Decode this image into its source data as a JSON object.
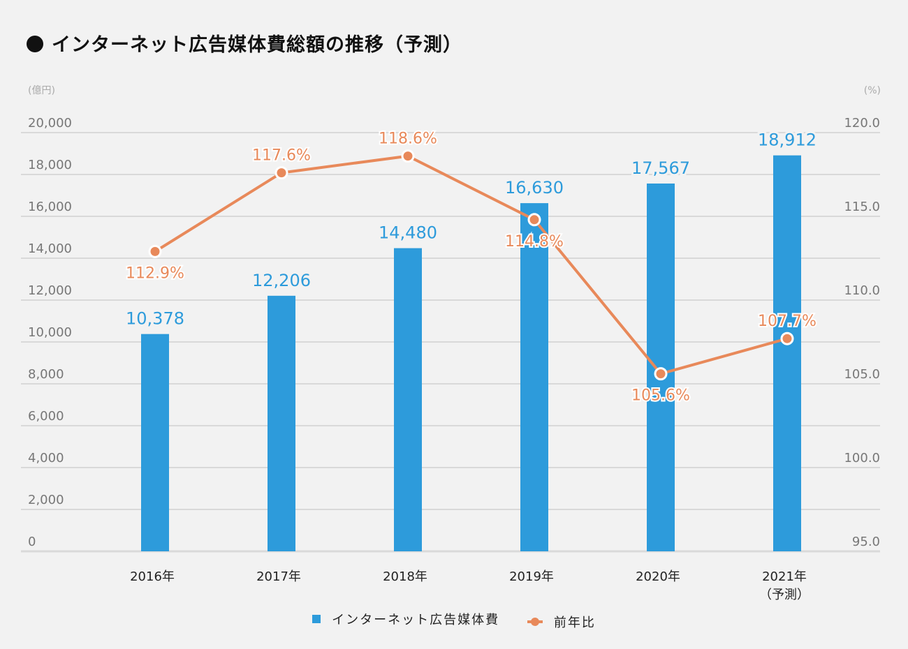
{
  "title": "インターネット広告媒体費総額の推移（予測）",
  "chart_data": {
    "type": "bar+line",
    "title": "インターネット広告媒体費総額の推移（予測）",
    "categories": [
      "2016年",
      "2017年",
      "2018年",
      "2019年",
      "2020年",
      "2021年"
    ],
    "category_sublabels": [
      "",
      "",
      "",
      "",
      "",
      "（予測）"
    ],
    "y_left": {
      "unit_label": "(億円)",
      "ticks": [
        "0",
        "2,000",
        "4,000",
        "6,000",
        "8,000",
        "10,000",
        "12,000",
        "14,000",
        "16,000",
        "18,000",
        "20,000"
      ],
      "range": [
        0,
        20000
      ]
    },
    "y_right": {
      "unit_label": "(%)",
      "ticks": [
        "95.0",
        "100.0",
        "105.0",
        "110.0",
        "115.0",
        "120.0"
      ],
      "range": [
        95,
        120
      ]
    },
    "grid": true,
    "series": [
      {
        "name": "インターネット広告媒体費",
        "type": "bar",
        "axis": "left",
        "color": "#2d9bdb",
        "values": [
          10378,
          12206,
          14480,
          16630,
          17567,
          18912
        ],
        "labels": [
          "10,378",
          "12,206",
          "14,480",
          "16,630",
          "17,567",
          "18,912"
        ]
      },
      {
        "name": "前年比",
        "type": "line",
        "axis": "right",
        "color": "#e8895a",
        "values": [
          112.9,
          117.6,
          118.6,
          114.8,
          105.6,
          107.7
        ],
        "labels": [
          "112.9%",
          "117.6%",
          "118.6%",
          "114.8%",
          "105.6%",
          "107.7%"
        ],
        "label_position": [
          "below",
          "above",
          "above",
          "below",
          "below",
          "above"
        ]
      }
    ],
    "legend_position": "bottom-center"
  }
}
